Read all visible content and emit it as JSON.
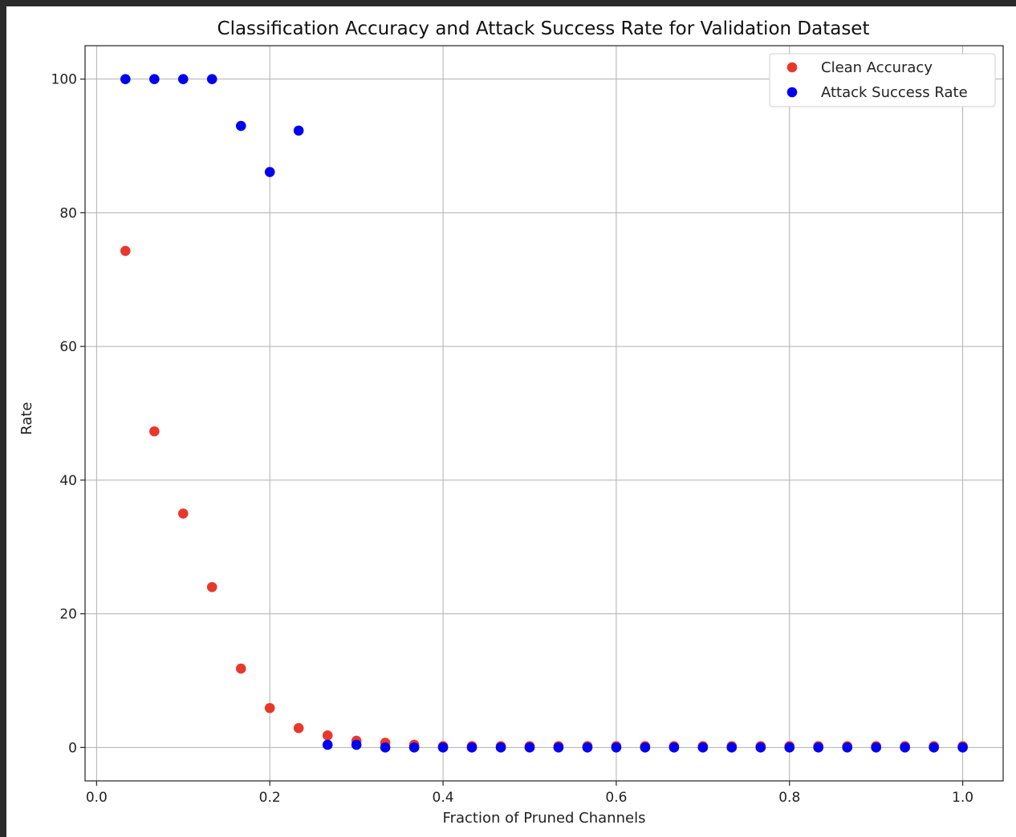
{
  "chart_data": {
    "type": "scatter",
    "title": "Classification Accuracy and Attack Success Rate for Validation Dataset",
    "xlabel": "Fraction of Pruned Channels",
    "ylabel": "Rate",
    "xlim": [
      -0.0133,
      1.0467
    ],
    "ylim": [
      -5,
      105
    ],
    "xticks": [
      0.0,
      0.2,
      0.4,
      0.6,
      0.8,
      1.0
    ],
    "xtick_labels": [
      "0.0",
      "0.2",
      "0.4",
      "0.6",
      "0.8",
      "1.0"
    ],
    "yticks": [
      0,
      20,
      40,
      60,
      80,
      100
    ],
    "ytick_labels": [
      "0",
      "20",
      "40",
      "60",
      "80",
      "100"
    ],
    "grid": true,
    "legend_position": "top-right",
    "x": [
      0.0333,
      0.0667,
      0.1,
      0.1333,
      0.1667,
      0.2,
      0.2333,
      0.2667,
      0.3,
      0.3333,
      0.3667,
      0.4,
      0.4333,
      0.4667,
      0.5,
      0.5333,
      0.5667,
      0.6,
      0.6333,
      0.6667,
      0.7,
      0.7333,
      0.7667,
      0.8,
      0.8333,
      0.8667,
      0.9,
      0.9333,
      0.9667,
      1.0
    ],
    "series": [
      {
        "name": "Clean Accuracy",
        "color": "#e8382b",
        "values": [
          74.3,
          47.3,
          35.0,
          24.0,
          11.8,
          5.9,
          2.9,
          1.8,
          1.0,
          0.7,
          0.4,
          0.2,
          0.2,
          0.2,
          0.2,
          0.2,
          0.2,
          0.2,
          0.2,
          0.2,
          0.2,
          0.2,
          0.2,
          0.2,
          0.2,
          0.2,
          0.2,
          0.2,
          0.2,
          0.2
        ]
      },
      {
        "name": "Attack Success Rate",
        "color": "#0000f0",
        "values": [
          100.0,
          100.0,
          100.0,
          100.0,
          93.0,
          86.1,
          92.3,
          0.4,
          0.4,
          0.0,
          0.0,
          0.0,
          0.0,
          0.0,
          0.0,
          0.0,
          0.0,
          0.0,
          0.0,
          0.0,
          0.0,
          0.0,
          0.0,
          0.0,
          0.0,
          0.0,
          0.0,
          0.0,
          0.0,
          0.0
        ]
      }
    ]
  }
}
